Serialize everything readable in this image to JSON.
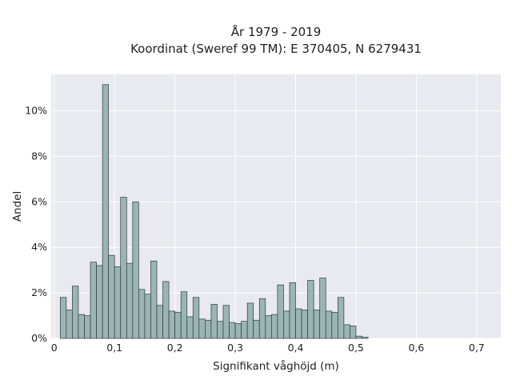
{
  "chart_data": {
    "type": "bar",
    "title_lines": [
      "År 1979 - 2019",
      "Koordinat (Sweref 99 TM): E 370405, N 6279431"
    ],
    "xlabel": "Signifikant våghöjd (m)",
    "ylabel": "Andel",
    "x_ticks": [
      0,
      0.1,
      0.2,
      0.3,
      0.4,
      0.5,
      0.6,
      0.7
    ],
    "x_tick_labels": [
      "0",
      "0,1",
      "0,2",
      "0,3",
      "0,4",
      "0,5",
      "0,6",
      "0,7"
    ],
    "y_ticks": [
      0,
      2,
      4,
      6,
      8,
      10
    ],
    "y_tick_labels": [
      "0%",
      "2%",
      "4%",
      "6%",
      "8%",
      "10%"
    ],
    "xlim": [
      -0.005,
      0.74
    ],
    "ylim": [
      0,
      11.6
    ],
    "bin_width": 0.01,
    "bin_starts": [
      0.01,
      0.02,
      0.03,
      0.04,
      0.05,
      0.06,
      0.07,
      0.08,
      0.09,
      0.1,
      0.11,
      0.12,
      0.13,
      0.14,
      0.15,
      0.16,
      0.17,
      0.18,
      0.19,
      0.2,
      0.21,
      0.22,
      0.23,
      0.24,
      0.25,
      0.26,
      0.27,
      0.28,
      0.29,
      0.3,
      0.31,
      0.32,
      0.33,
      0.34,
      0.35,
      0.36,
      0.37,
      0.38,
      0.39,
      0.4,
      0.41,
      0.42,
      0.43,
      0.44,
      0.45,
      0.46,
      0.47,
      0.48,
      0.49,
      0.5,
      0.51,
      0.52,
      0.53,
      0.54,
      0.55,
      0.56,
      0.57,
      0.58,
      0.59,
      0.6,
      0.61,
      0.62,
      0.63,
      0.64,
      0.65,
      0.66,
      0.67,
      0.68,
      0.69,
      0.7
    ],
    "values": [
      1.8,
      1.25,
      2.3,
      1.05,
      1.0,
      3.35,
      3.2,
      11.15,
      3.65,
      3.15,
      6.2,
      3.3,
      6.0,
      2.15,
      1.95,
      3.4,
      1.45,
      2.5,
      1.2,
      1.15,
      2.05,
      0.95,
      1.8,
      0.85,
      0.8,
      1.5,
      0.75,
      1.45,
      0.7,
      0.65,
      0.75,
      1.55,
      0.8,
      1.75,
      1.0,
      1.05,
      2.35,
      1.2,
      2.45,
      1.3,
      1.25,
      2.55,
      1.25,
      2.65,
      1.2,
      1.15,
      1.8,
      0.6,
      0.55,
      0.1,
      0.05,
      0,
      0,
      0,
      0,
      0,
      0,
      0,
      0,
      0,
      0,
      0,
      0,
      0,
      0,
      0,
      0,
      0,
      0,
      0
    ],
    "bar_color": "#9bb4b4",
    "bar_edge_color": "#2e3b3b",
    "plot_bg": "#e9e9f0",
    "grid": true,
    "grid_color": "#ffffff"
  }
}
